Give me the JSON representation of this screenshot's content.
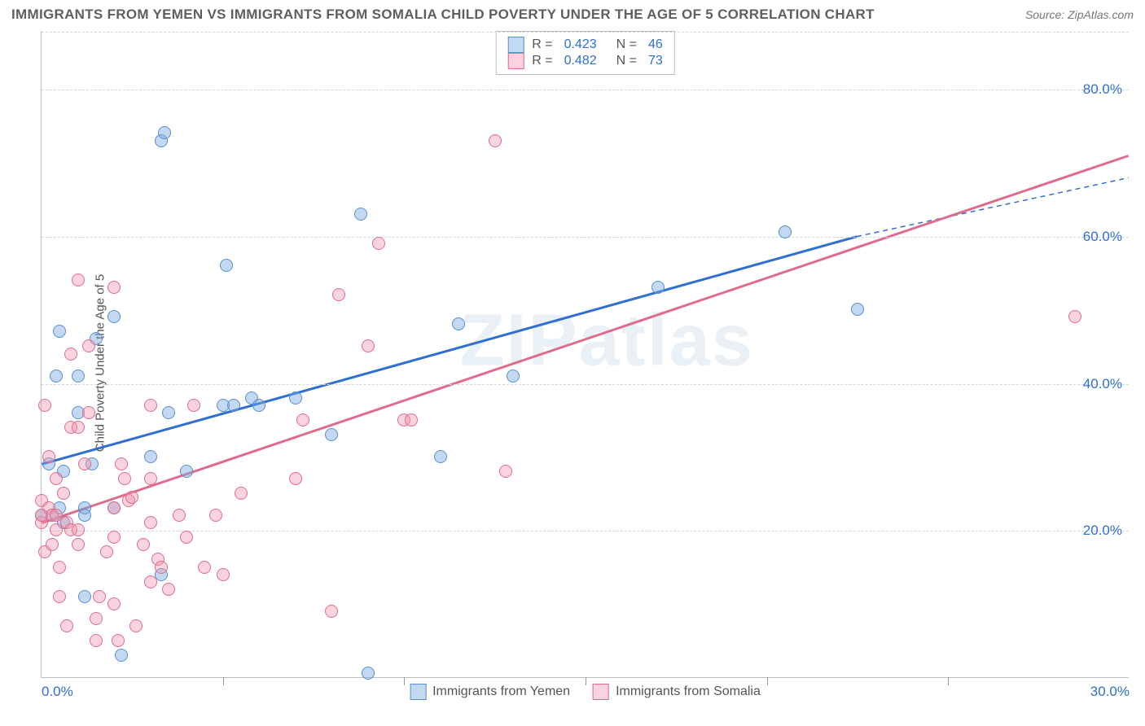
{
  "header": {
    "title": "IMMIGRANTS FROM YEMEN VS IMMIGRANTS FROM SOMALIA CHILD POVERTY UNDER THE AGE OF 5 CORRELATION CHART",
    "source_prefix": "Source: ",
    "source_name": "ZipAtlas.com"
  },
  "axes": {
    "y_label": "Child Poverty Under the Age of 5",
    "y_min": 0,
    "y_max": 88,
    "y_ticks": [
      20,
      40,
      60,
      80
    ],
    "y_tick_labels": [
      "20.0%",
      "40.0%",
      "60.0%",
      "80.0%"
    ],
    "x_min": 0,
    "x_max": 30,
    "x_ticks": [
      0,
      5,
      10,
      15,
      20,
      25,
      30
    ],
    "x_tick_labels_ends": {
      "left": "0.0%",
      "right": "30.0%"
    }
  },
  "grid": {
    "color": "#d6d6d6"
  },
  "series": [
    {
      "name": "Immigrants from Yemen",
      "key": "yemen",
      "color_fill": "rgba(120,170,225,0.45)",
      "color_stroke": "#5a8fcf",
      "marker_radius": 8,
      "trend": {
        "color": "#2f6fd0",
        "width": 3,
        "x1": 0,
        "y1": 29,
        "x2": 22.5,
        "y2": 60,
        "dash_continue_to_x": 30,
        "dash_y": 68
      },
      "r": "0.423",
      "n": "46",
      "points": [
        [
          0.0,
          22
        ],
        [
          0.2,
          29
        ],
        [
          0.3,
          22
        ],
        [
          0.4,
          41
        ],
        [
          0.5,
          47
        ],
        [
          0.5,
          23
        ],
        [
          0.6,
          21
        ],
        [
          0.6,
          28
        ],
        [
          1.0,
          41
        ],
        [
          1.0,
          36
        ],
        [
          1.2,
          23
        ],
        [
          1.2,
          11
        ],
        [
          1.2,
          22
        ],
        [
          1.4,
          29
        ],
        [
          1.5,
          46
        ],
        [
          2.0,
          49
        ],
        [
          2.0,
          23
        ],
        [
          2.2,
          3
        ],
        [
          3.0,
          30
        ],
        [
          3.3,
          14
        ],
        [
          3.3,
          73
        ],
        [
          3.4,
          74
        ],
        [
          3.5,
          36
        ],
        [
          4.0,
          28
        ],
        [
          5.0,
          37
        ],
        [
          5.1,
          56
        ],
        [
          5.3,
          37
        ],
        [
          5.8,
          38
        ],
        [
          6.0,
          37
        ],
        [
          7.0,
          38
        ],
        [
          8.0,
          33
        ],
        [
          8.8,
          63
        ],
        [
          9.0,
          0.5
        ],
        [
          11.0,
          30
        ],
        [
          11.5,
          48
        ],
        [
          13.0,
          41
        ],
        [
          17.0,
          53
        ],
        [
          20.5,
          60.5
        ],
        [
          22.5,
          50
        ]
      ]
    },
    {
      "name": "Immigrants from Somalia",
      "key": "somalia",
      "color_fill": "rgba(240,150,175,0.42)",
      "color_stroke": "#e06c8c",
      "marker_radius": 8,
      "trend": {
        "color": "#e06c8c",
        "width": 3,
        "x1": 0,
        "y1": 21,
        "x2": 30,
        "y2": 71
      },
      "r": "0.482",
      "n": "73",
      "points": [
        [
          0.0,
          21
        ],
        [
          0.0,
          22
        ],
        [
          0.0,
          24
        ],
        [
          0.1,
          17
        ],
        [
          0.1,
          37
        ],
        [
          0.2,
          30
        ],
        [
          0.2,
          23
        ],
        [
          0.3,
          22
        ],
        [
          0.3,
          18
        ],
        [
          0.4,
          20
        ],
        [
          0.4,
          22
        ],
        [
          0.4,
          27
        ],
        [
          0.5,
          11
        ],
        [
          0.5,
          15
        ],
        [
          0.6,
          25
        ],
        [
          0.7,
          21
        ],
        [
          0.7,
          7
        ],
        [
          0.8,
          34
        ],
        [
          0.8,
          44
        ],
        [
          0.8,
          20
        ],
        [
          1.0,
          18
        ],
        [
          1.0,
          20
        ],
        [
          1.0,
          54
        ],
        [
          1.0,
          34
        ],
        [
          1.2,
          29
        ],
        [
          1.3,
          45
        ],
        [
          1.3,
          36
        ],
        [
          1.5,
          5
        ],
        [
          1.5,
          8
        ],
        [
          1.6,
          11
        ],
        [
          1.8,
          17
        ],
        [
          2.0,
          23
        ],
        [
          2.0,
          19
        ],
        [
          2.0,
          10
        ],
        [
          2.0,
          53
        ],
        [
          2.1,
          5
        ],
        [
          2.2,
          29
        ],
        [
          2.3,
          27
        ],
        [
          2.4,
          24
        ],
        [
          2.5,
          24.5
        ],
        [
          2.6,
          7
        ],
        [
          2.8,
          18
        ],
        [
          3.0,
          27
        ],
        [
          3.0,
          37
        ],
        [
          3.0,
          21
        ],
        [
          3.0,
          13
        ],
        [
          3.2,
          16
        ],
        [
          3.3,
          15
        ],
        [
          3.5,
          12
        ],
        [
          3.8,
          22
        ],
        [
          4.0,
          19
        ],
        [
          4.2,
          37
        ],
        [
          4.5,
          15
        ],
        [
          4.8,
          22
        ],
        [
          5.0,
          14
        ],
        [
          5.5,
          25
        ],
        [
          7.0,
          27
        ],
        [
          7.2,
          35
        ],
        [
          8.0,
          9
        ],
        [
          8.2,
          52
        ],
        [
          9.0,
          45
        ],
        [
          9.3,
          59
        ],
        [
          10.0,
          35
        ],
        [
          10.2,
          35
        ],
        [
          12.5,
          73
        ],
        [
          12.8,
          28
        ],
        [
          28.5,
          49
        ]
      ]
    }
  ],
  "legend_top": {
    "r_label": "R =",
    "n_label": "N ="
  },
  "bottom_legend": [
    {
      "series": "yemen"
    },
    {
      "series": "somalia"
    }
  ],
  "watermark": "ZIPatlas",
  "colors": {
    "axis_text": "#2f6fd0",
    "label_text": "#555",
    "border": "#bfbfbf"
  }
}
